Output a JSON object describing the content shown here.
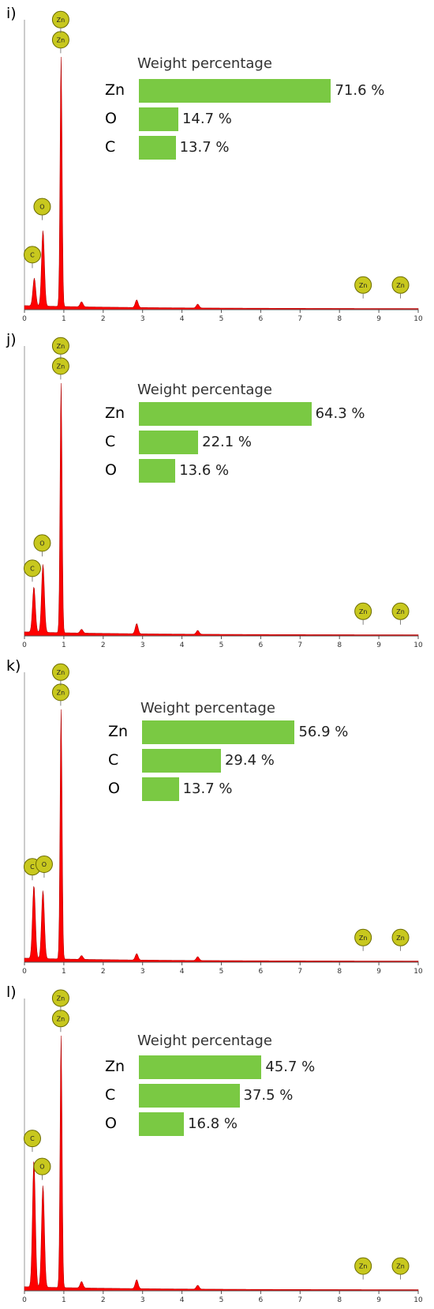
{
  "chart_data": [
    {
      "type": "bar",
      "panel_label": "i)",
      "title": "Weight percentage",
      "categories": [
        "Zn",
        "O",
        "C"
      ],
      "values": [
        71.6,
        14.7,
        13.7
      ],
      "value_labels": [
        "71.6 %",
        "14.7 %",
        "13.7 %"
      ],
      "color": "#7ac943",
      "spectrum": {
        "type": "area",
        "color": "#ff0000",
        "xlim": [
          0,
          10
        ],
        "x_ticks": [
          "0",
          "1",
          "2",
          "3",
          "4",
          "5",
          "6",
          "7",
          "8",
          "9",
          "10"
        ],
        "peaks": [
          {
            "x": 0.25,
            "h": 0.11
          },
          {
            "x": 0.47,
            "h": 0.3
          },
          {
            "x": 0.93,
            "h": 1.0
          },
          {
            "x": 1.45,
            "h": 0.02
          },
          {
            "x": 2.85,
            "h": 0.03
          },
          {
            "x": 4.4,
            "h": 0.015
          }
        ],
        "markers": [
          {
            "label": "C",
            "x": 0.2,
            "h": 0.18
          },
          {
            "label": "O",
            "x": 0.45,
            "h": 0.37
          },
          {
            "label": "Zn",
            "x": 0.92,
            "h": 1.03
          },
          {
            "label": "Zn",
            "x": 0.92,
            "h": 1.11
          },
          {
            "label": "Zn",
            "x": 8.6,
            "h": 0.06
          },
          {
            "label": "Zn",
            "x": 9.55,
            "h": 0.06
          }
        ]
      }
    },
    {
      "type": "bar",
      "panel_label": "j)",
      "title": "Weight percentage",
      "categories": [
        "Zn",
        "C",
        "O"
      ],
      "values": [
        64.3,
        22.1,
        13.6
      ],
      "value_labels": [
        "64.3 %",
        "22.1 %",
        "13.6 %"
      ],
      "color": "#7ac943",
      "spectrum": {
        "type": "area",
        "color": "#ff0000",
        "xlim": [
          0,
          10
        ],
        "x_ticks": [
          "0",
          "1",
          "2",
          "3",
          "4",
          "5",
          "6",
          "7",
          "8",
          "9",
          "10"
        ],
        "peaks": [
          {
            "x": 0.24,
            "h": 0.18
          },
          {
            "x": 0.47,
            "h": 0.27
          },
          {
            "x": 0.93,
            "h": 1.0
          },
          {
            "x": 1.45,
            "h": 0.015
          },
          {
            "x": 2.85,
            "h": 0.04
          },
          {
            "x": 4.4,
            "h": 0.015
          }
        ],
        "markers": [
          {
            "label": "C",
            "x": 0.2,
            "h": 0.23
          },
          {
            "label": "O",
            "x": 0.45,
            "h": 0.33
          },
          {
            "label": "Zn",
            "x": 0.92,
            "h": 1.03
          },
          {
            "label": "Zn",
            "x": 0.92,
            "h": 1.11
          },
          {
            "label": "Zn",
            "x": 8.6,
            "h": 0.06
          },
          {
            "label": "Zn",
            "x": 9.55,
            "h": 0.06
          }
        ]
      }
    },
    {
      "type": "bar",
      "panel_label": "k)",
      "title": "Weight percentage",
      "categories": [
        "Zn",
        "C",
        "O"
      ],
      "values": [
        56.9,
        29.4,
        13.7
      ],
      "value_labels": [
        "56.9 %",
        "29.4 %",
        "13.7 %"
      ],
      "color": "#7ac943",
      "spectrum": {
        "type": "area",
        "color": "#ff0000",
        "xlim": [
          0,
          10
        ],
        "x_ticks": [
          "0",
          "1",
          "2",
          "3",
          "4",
          "5",
          "6",
          "7",
          "8",
          "9",
          "10"
        ],
        "peaks": [
          {
            "x": 0.24,
            "h": 0.29
          },
          {
            "x": 0.47,
            "h": 0.27
          },
          {
            "x": 0.93,
            "h": 1.0
          },
          {
            "x": 1.45,
            "h": 0.015
          },
          {
            "x": 2.85,
            "h": 0.025
          },
          {
            "x": 4.4,
            "h": 0.015
          }
        ],
        "markers": [
          {
            "label": "C",
            "x": 0.2,
            "h": 0.34
          },
          {
            "label": "O",
            "x": 0.5,
            "h": 0.35
          },
          {
            "label": "Zn",
            "x": 0.92,
            "h": 1.03
          },
          {
            "label": "Zn",
            "x": 0.92,
            "h": 1.11
          },
          {
            "label": "Zn",
            "x": 8.6,
            "h": 0.06
          },
          {
            "label": "Zn",
            "x": 9.55,
            "h": 0.06
          }
        ]
      }
    },
    {
      "type": "bar",
      "panel_label": "l)",
      "title": "Weight percentage",
      "categories": [
        "Zn",
        "C",
        "O"
      ],
      "values": [
        45.7,
        37.5,
        16.8
      ],
      "value_labels": [
        "45.7 %",
        "37.5 %",
        "16.8 %"
      ],
      "color": "#7ac943",
      "spectrum": {
        "type": "area",
        "color": "#ff0000",
        "xlim": [
          0,
          10
        ],
        "x_ticks": [
          "0",
          "1",
          "2",
          "3",
          "4",
          "5",
          "6",
          "7",
          "8",
          "9",
          "10"
        ],
        "peaks": [
          {
            "x": 0.24,
            "h": 0.5
          },
          {
            "x": 0.47,
            "h": 0.4
          },
          {
            "x": 0.93,
            "h": 1.0
          },
          {
            "x": 1.45,
            "h": 0.025
          },
          {
            "x": 2.85,
            "h": 0.035
          },
          {
            "x": 4.4,
            "h": 0.015
          }
        ],
        "markers": [
          {
            "label": "C",
            "x": 0.2,
            "h": 0.56
          },
          {
            "label": "O",
            "x": 0.45,
            "h": 0.45
          },
          {
            "label": "Zn",
            "x": 0.92,
            "h": 1.03
          },
          {
            "label": "Zn",
            "x": 0.92,
            "h": 1.11
          },
          {
            "label": "Zn",
            "x": 8.6,
            "h": 0.06
          },
          {
            "label": "Zn",
            "x": 9.55,
            "h": 0.06
          }
        ]
      }
    }
  ]
}
